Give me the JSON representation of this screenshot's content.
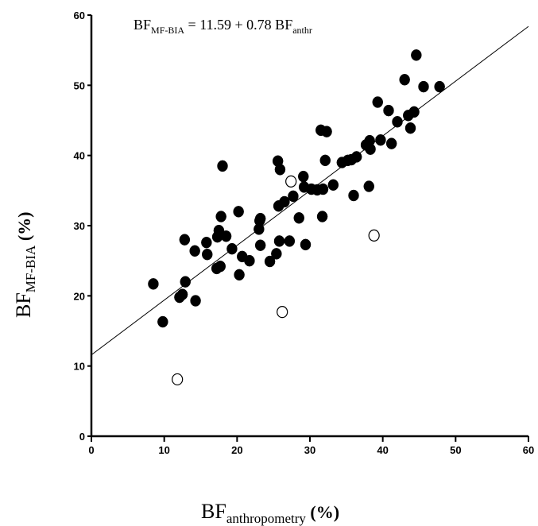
{
  "chart_data": {
    "type": "scatter",
    "title": "",
    "equation": {
      "lhs_main": "BF",
      "lhs_sub": "MF-BIA",
      "rhs_text": " =  11.59 + 0.78 BF",
      "rhs_sub": "anthr"
    },
    "xlabel": {
      "main": "BF",
      "sub": "anthropometry",
      "unit": " (%)"
    },
    "ylabel": {
      "main": "BF",
      "sub": "MF-BIA",
      "unit": " (%)"
    },
    "xlim": [
      0,
      60
    ],
    "ylim": [
      0,
      60
    ],
    "x_ticks": [
      0,
      10,
      20,
      30,
      40,
      50,
      60
    ],
    "y_ticks": [
      0,
      10,
      20,
      30,
      40,
      50,
      60
    ],
    "grid": false,
    "regression": {
      "intercept": 11.59,
      "slope": 0.78
    },
    "series": [
      {
        "marker": "filled",
        "points": [
          [
            8.5,
            21.7
          ],
          [
            9.8,
            16.3
          ],
          [
            12.1,
            19.8
          ],
          [
            12.5,
            20.2
          ],
          [
            12.8,
            28.0
          ],
          [
            12.9,
            22.0
          ],
          [
            14.2,
            26.4
          ],
          [
            14.3,
            19.3
          ],
          [
            15.8,
            27.6
          ],
          [
            15.9,
            25.9
          ],
          [
            17.2,
            23.9
          ],
          [
            17.3,
            28.4
          ],
          [
            17.5,
            29.3
          ],
          [
            17.7,
            24.2
          ],
          [
            17.8,
            31.3
          ],
          [
            18.0,
            38.5
          ],
          [
            18.5,
            28.5
          ],
          [
            19.3,
            26.7
          ],
          [
            20.2,
            32.0
          ],
          [
            20.3,
            23.0
          ],
          [
            20.7,
            25.6
          ],
          [
            21.7,
            25.0
          ],
          [
            23.0,
            29.5
          ],
          [
            23.1,
            30.7
          ],
          [
            23.2,
            31.0
          ],
          [
            23.2,
            27.2
          ],
          [
            24.5,
            24.9
          ],
          [
            25.4,
            26.0
          ],
          [
            25.6,
            39.2
          ],
          [
            25.8,
            27.8
          ],
          [
            25.9,
            38.0
          ],
          [
            25.7,
            32.8
          ],
          [
            26.5,
            33.4
          ],
          [
            27.2,
            27.8
          ],
          [
            27.7,
            34.2
          ],
          [
            28.5,
            31.1
          ],
          [
            29.1,
            37.0
          ],
          [
            29.2,
            35.5
          ],
          [
            29.4,
            27.3
          ],
          [
            30.2,
            35.2
          ],
          [
            31.0,
            35.1
          ],
          [
            31.5,
            43.6
          ],
          [
            31.8,
            35.2
          ],
          [
            31.7,
            31.3
          ],
          [
            32.3,
            43.4
          ],
          [
            32.1,
            39.3
          ],
          [
            33.2,
            35.8
          ],
          [
            34.4,
            39.0
          ],
          [
            35.2,
            39.3
          ],
          [
            35.7,
            39.4
          ],
          [
            36.0,
            34.3
          ],
          [
            36.4,
            39.8
          ],
          [
            37.7,
            41.5
          ],
          [
            38.1,
            35.6
          ],
          [
            38.2,
            42.1
          ],
          [
            38.3,
            40.9
          ],
          [
            39.3,
            47.6
          ],
          [
            39.7,
            42.2
          ],
          [
            40.8,
            46.4
          ],
          [
            41.2,
            41.7
          ],
          [
            42.0,
            44.8
          ],
          [
            43.0,
            50.8
          ],
          [
            43.5,
            45.7
          ],
          [
            43.8,
            43.9
          ],
          [
            44.3,
            46.2
          ],
          [
            44.6,
            54.3
          ],
          [
            45.6,
            49.8
          ],
          [
            47.8,
            49.8
          ]
        ]
      },
      {
        "marker": "open",
        "points": [
          [
            11.8,
            8.1
          ],
          [
            26.2,
            17.7
          ],
          [
            27.4,
            36.3
          ],
          [
            38.8,
            28.6
          ]
        ]
      }
    ]
  }
}
